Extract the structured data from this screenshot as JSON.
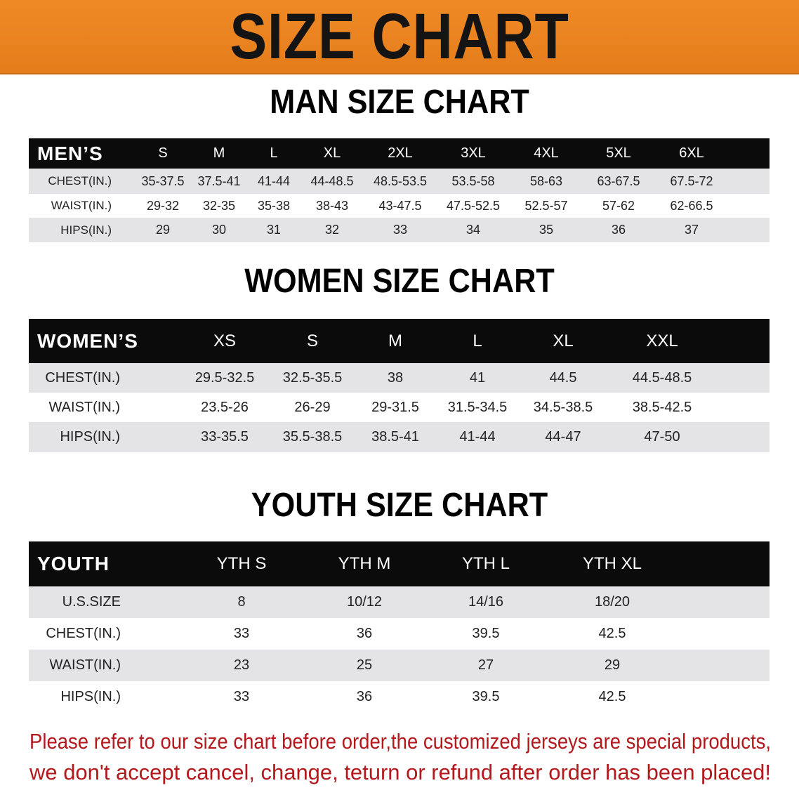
{
  "banner_title": "SIZE CHART",
  "colors": {
    "banner": "#ef8a26",
    "header_bg": "#0b0b0b",
    "row_alt": "#e4e4e6",
    "notice": "#b3191c"
  },
  "men": {
    "title": "MAN SIZE CHART",
    "header_label": "MEN’S",
    "sizes": [
      "S",
      "M",
      "L",
      "XL",
      "2XL",
      "3XL",
      "4XL",
      "5XL",
      "6XL"
    ],
    "rows": [
      {
        "label": "CHEST(IN.)",
        "values": [
          "35-37.5",
          "37.5-41",
          "41-44",
          "44-48.5",
          "48.5-53.5",
          "53.5-58",
          "58-63",
          "63-67.5",
          "67.5-72"
        ]
      },
      {
        "label": "WAIST(IN.)",
        "values": [
          "29-32",
          "32-35",
          "35-38",
          "38-43",
          "43-47.5",
          "47.5-52.5",
          "52.5-57",
          "57-62",
          "62-66.5"
        ]
      },
      {
        "label": "HIPS(IN.)",
        "values": [
          "29",
          "30",
          "31",
          "32",
          "33",
          "34",
          "35",
          "36",
          "37"
        ]
      }
    ]
  },
  "women": {
    "title": "WOMEN SIZE CHART",
    "header_label": "WOMEN’S",
    "sizes": [
      "XS",
      "S",
      "M",
      "L",
      "XL",
      "XXL"
    ],
    "rows": [
      {
        "label": "CHEST(IN.)",
        "values": [
          "29.5-32.5",
          "32.5-35.5",
          "38",
          "41",
          "44.5",
          "44.5-48.5"
        ]
      },
      {
        "label": "WAIST(IN.)",
        "values": [
          "23.5-26",
          "26-29",
          "29-31.5",
          "31.5-34.5",
          "34.5-38.5",
          "38.5-42.5"
        ]
      },
      {
        "label": "HIPS(IN.)",
        "values": [
          "33-35.5",
          "35.5-38.5",
          "38.5-41",
          "41-44",
          "44-47",
          "47-50"
        ]
      }
    ]
  },
  "youth": {
    "title": "YOUTH SIZE CHART",
    "header_label": "YOUTH",
    "sizes": [
      "YTH S",
      "YTH M",
      "YTH L",
      "YTH XL"
    ],
    "rows": [
      {
        "label": "U.S.SIZE",
        "values": [
          "8",
          "10/12",
          "14/16",
          "18/20"
        ]
      },
      {
        "label": "CHEST(IN.)",
        "values": [
          "33",
          "36",
          "39.5",
          "42.5"
        ]
      },
      {
        "label": "WAIST(IN.)",
        "values": [
          "23",
          "25",
          "27",
          "29"
        ]
      },
      {
        "label": "HIPS(IN.)",
        "values": [
          "33",
          "36",
          "39.5",
          "42.5"
        ]
      }
    ]
  },
  "notice": {
    "line1": "Please refer to our size chart before order,the customized jerseys are special products,",
    "line2": "we don't accept cancel, change, teturn or refund after order has been placed!"
  }
}
